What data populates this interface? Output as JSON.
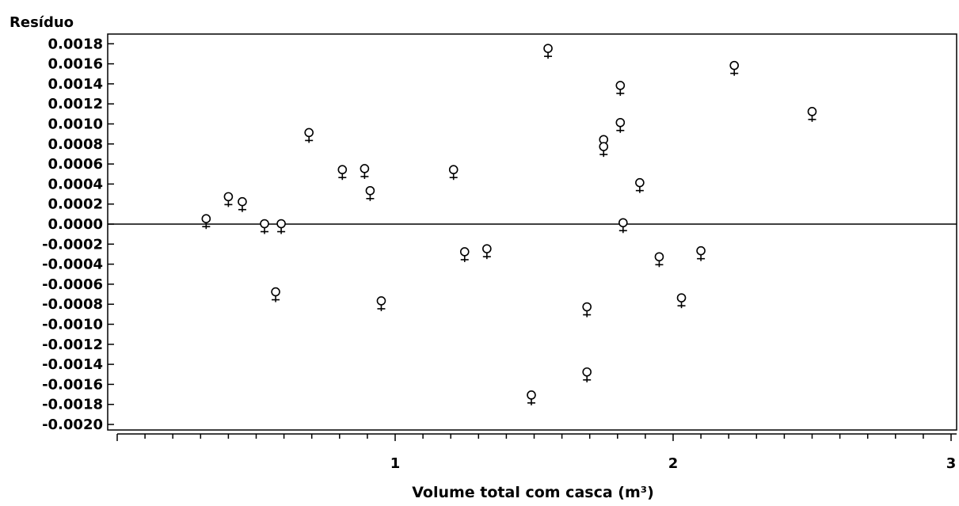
{
  "chart_data": {
    "type": "scatter",
    "title": "",
    "ylabel": "Resíduo",
    "xlabel": "Volume total com casca (m³)",
    "xlim": [
      0,
      3
    ],
    "ylim": [
      -0.002,
      0.0019
    ],
    "x_ticks": [
      1,
      2,
      3
    ],
    "x_tick_labels": [
      "1",
      "2",
      "3"
    ],
    "y_ticks": [
      0.0018,
      0.0016,
      0.0014,
      0.0012,
      0.001,
      0.0008,
      0.0006,
      0.0004,
      0.0002,
      0.0,
      -0.0002,
      -0.0004,
      -0.0006,
      -0.0008,
      -0.001,
      -0.0012,
      -0.0014,
      -0.0016,
      -0.0018,
      -0.002
    ],
    "y_tick_labels": [
      "0.0018",
      "0.0016",
      "0.0014",
      "0.0012",
      "0.0010",
      "0.0008",
      "0.0006",
      "0.0004",
      "0.0002",
      "0.0000",
      "-0.0002",
      "-0.0004",
      "-0.0006",
      "-0.0008",
      "-0.0010",
      "-0.0012",
      "-0.0014",
      "-0.0016",
      "-0.0018",
      "-0.0020"
    ],
    "reference_line_y": 0.0,
    "marker_symbol": "♀",
    "grid": false,
    "legend": "none",
    "points": [
      {
        "x": 0.32,
        "y": 3e-05
      },
      {
        "x": 0.4,
        "y": 0.00025
      },
      {
        "x": 0.45,
        "y": 0.0002
      },
      {
        "x": 0.53,
        "y": -2e-05
      },
      {
        "x": 0.59,
        "y": -2e-05
      },
      {
        "x": 0.57,
        "y": -0.0007
      },
      {
        "x": 0.69,
        "y": 0.00089
      },
      {
        "x": 0.81,
        "y": 0.00052
      },
      {
        "x": 0.89,
        "y": 0.00053
      },
      {
        "x": 0.91,
        "y": 0.00031
      },
      {
        "x": 0.95,
        "y": -0.00079
      },
      {
        "x": 1.21,
        "y": 0.00052
      },
      {
        "x": 1.25,
        "y": -0.0003
      },
      {
        "x": 1.33,
        "y": -0.00027
      },
      {
        "x": 1.49,
        "y": -0.00173
      },
      {
        "x": 1.55,
        "y": 0.00173
      },
      {
        "x": 1.69,
        "y": -0.00085
      },
      {
        "x": 1.69,
        "y": -0.0015
      },
      {
        "x": 1.75,
        "y": 0.00082
      },
      {
        "x": 1.75,
        "y": 0.00075
      },
      {
        "x": 1.81,
        "y": 0.00136
      },
      {
        "x": 1.81,
        "y": 0.00099
      },
      {
        "x": 1.82,
        "y": -1e-05
      },
      {
        "x": 1.88,
        "y": 0.00039
      },
      {
        "x": 1.95,
        "y": -0.00035
      },
      {
        "x": 2.03,
        "y": -0.00076
      },
      {
        "x": 2.1,
        "y": -0.00029
      },
      {
        "x": 2.22,
        "y": 0.00156
      },
      {
        "x": 2.5,
        "y": 0.0011
      }
    ]
  }
}
